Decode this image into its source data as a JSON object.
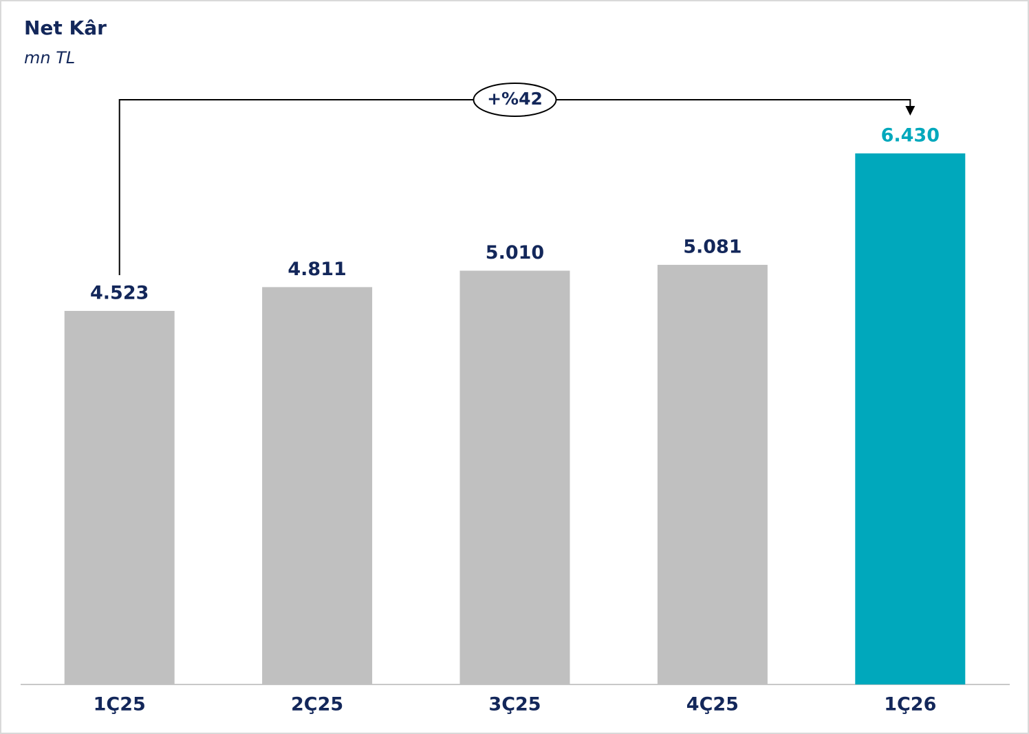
{
  "chart_data": {
    "type": "bar",
    "title": "Net Kâr",
    "subtitle": "mn TL",
    "categories": [
      "1Ç25",
      "2Ç25",
      "3Ç25",
      "4Ç25",
      "1Ç26"
    ],
    "values": [
      4523,
      4811,
      5010,
      5081,
      6430
    ],
    "value_labels": [
      "4.523",
      "4.811",
      "5.010",
      "5.081",
      "6.430"
    ],
    "colors": [
      "#c0c0c0",
      "#c0c0c0",
      "#c0c0c0",
      "#c0c0c0",
      "#00a8bc"
    ],
    "value_label_colors": [
      "#13275a",
      "#13275a",
      "#13275a",
      "#13275a",
      "#00a8bc"
    ],
    "annotation": "+%42"
  }
}
